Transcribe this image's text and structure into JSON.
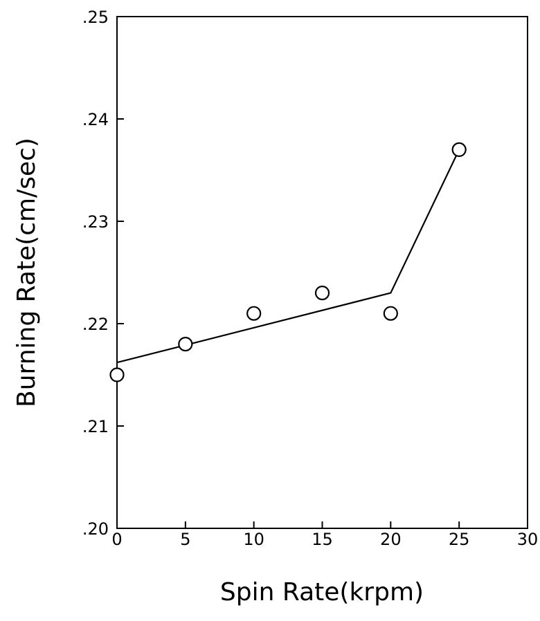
{
  "chart_data": {
    "type": "scatter",
    "title": "",
    "xlabel": "Spin Rate(krpm)",
    "ylabel": "Burning Rate(cm/sec)",
    "xlim": [
      0,
      30
    ],
    "ylim": [
      0.2,
      0.25
    ],
    "x_ticks": [
      0,
      5,
      10,
      15,
      20,
      25,
      30
    ],
    "x_tick_labels": [
      "0",
      "5",
      "10",
      "15",
      "20",
      "25",
      "30"
    ],
    "y_ticks": [
      0.2,
      0.21,
      0.22,
      0.23,
      0.24,
      0.25
    ],
    "y_tick_labels": [
      ".20",
      ".21",
      ".22",
      ".23",
      ".24",
      ".25"
    ],
    "grid": false,
    "legend": "none",
    "series": [
      {
        "kind": "points",
        "marker": "open-circle",
        "x": [
          0,
          5,
          10,
          15,
          20,
          25
        ],
        "y": [
          0.215,
          0.218,
          0.221,
          0.223,
          0.221,
          0.237
        ]
      },
      {
        "kind": "fit-line",
        "x": [
          0,
          20,
          25
        ],
        "y": [
          0.2162,
          0.223,
          0.237
        ]
      }
    ]
  }
}
